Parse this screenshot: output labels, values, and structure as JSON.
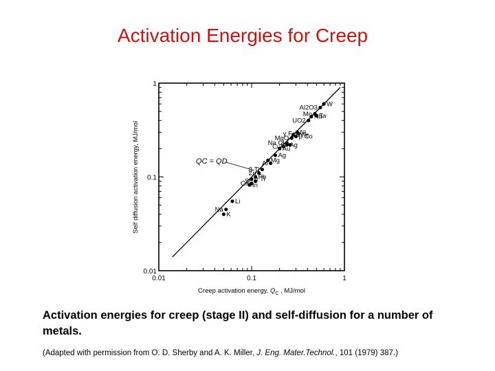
{
  "title": "Activation Energies for Creep",
  "caption": "Activation energies for creep (stage II) and self-diffusion for a number of metals.",
  "source": {
    "prefix": "(Adapted with permission from O. D. Sherby and A. K. Miller, ",
    "journal": "J. Eng. Mater.Technol.",
    "suffix": ", 101 (1979) 387.)"
  },
  "chart_data": {
    "type": "scatter",
    "x_scale": "log",
    "y_scale": "log",
    "xlim": [
      0.01,
      1
    ],
    "ylim": [
      0.01,
      1
    ],
    "xlabel_main": "Creep activation energy, ",
    "xlabel_sym": "Q",
    "xlabel_sub": "C",
    "xlabel_unit": " , MJ/mol",
    "ylabel": "Self diffusion activation energy, MJ/mol",
    "x_ticks": [
      "0.01",
      "0.1",
      "1"
    ],
    "y_ticks": [
      "0.01",
      "0.1",
      "1"
    ],
    "line_label": "QC = QD",
    "line": {
      "x": [
        0.014,
        0.9
      ],
      "y": [
        0.014,
        0.9
      ]
    },
    "points": [
      {
        "label": "W",
        "x": 0.6,
        "y": 0.6
      },
      {
        "label": "Al2O3",
        "x": 0.55,
        "y": 0.55
      },
      {
        "label": "Nb",
        "x": 0.44,
        "y": 0.44
      },
      {
        "label": "Mo",
        "x": 0.48,
        "y": 0.47
      },
      {
        "label": "Ta",
        "x": 0.5,
        "y": 0.45
      },
      {
        "label": "UO2",
        "x": 0.41,
        "y": 0.4
      },
      {
        "label": "Ni",
        "x": 0.31,
        "y": 0.3
      },
      {
        "label": "γ Fe",
        "x": 0.32,
        "y": 0.29
      },
      {
        "label": "α Fe",
        "x": 0.28,
        "y": 0.28
      },
      {
        "label": "MgO",
        "x": 0.27,
        "y": 0.26
      },
      {
        "label": "β Co",
        "x": 0.3,
        "y": 0.27
      },
      {
        "label": "Na Cl",
        "x": 0.24,
        "y": 0.23
      },
      {
        "label": "Ag",
        "x": 0.24,
        "y": 0.22
      },
      {
        "label": "Br",
        "x": 0.26,
        "y": 0.22
      },
      {
        "label": "Au",
        "x": 0.2,
        "y": 0.2
      },
      {
        "label": "Cu",
        "x": 0.22,
        "y": 0.21
      },
      {
        "label": "Mg",
        "x": 0.15,
        "y": 0.15
      },
      {
        "label": "Al",
        "x": 0.16,
        "y": 0.14
      },
      {
        "label": "Ag",
        "x": 0.18,
        "y": 0.17
      },
      {
        "label": "Zn",
        "x": 0.12,
        "y": 0.11
      },
      {
        "label": "Pb",
        "x": 0.11,
        "y": 0.1
      },
      {
        "label": "β Ti",
        "x": 0.13,
        "y": 0.12
      },
      {
        "label": "α Ti",
        "x": 0.1,
        "y": 0.095
      },
      {
        "label": "Sn",
        "x": 0.11,
        "y": 0.09
      },
      {
        "label": "In",
        "x": 0.095,
        "y": 0.082
      },
      {
        "label": "Ca",
        "x": 0.1,
        "y": 0.085
      },
      {
        "label": "Li",
        "x": 0.062,
        "y": 0.055
      },
      {
        "label": "Na",
        "x": 0.053,
        "y": 0.045
      },
      {
        "label": "K",
        "x": 0.05,
        "y": 0.04
      }
    ]
  }
}
